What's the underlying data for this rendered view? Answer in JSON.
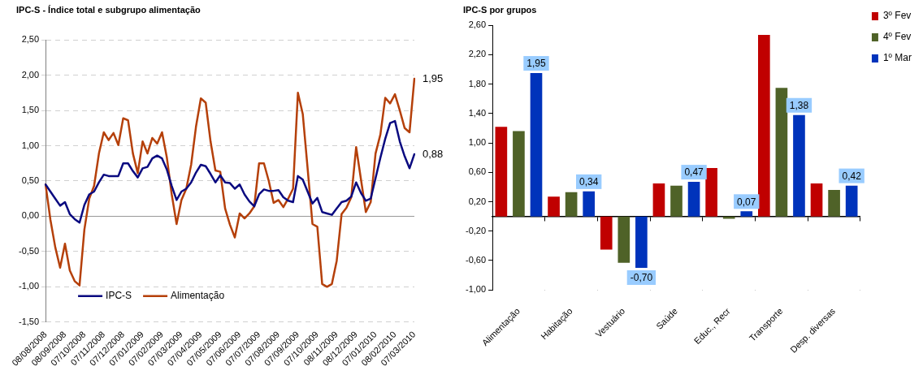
{
  "chart_data": [
    {
      "type": "line",
      "title": "IPC-S - Índice total e subgrupo alimentação",
      "categories": [
        "08/08/2008",
        null,
        null,
        null,
        "08/09/2008",
        null,
        null,
        null,
        "07/10/2008",
        null,
        null,
        null,
        "07/11/2008",
        null,
        null,
        null,
        "07/12/2008",
        null,
        null,
        null,
        "07/01/2009",
        null,
        null,
        null,
        "07/02/2009",
        null,
        null,
        null,
        "07/03/2009",
        null,
        null,
        null,
        "07/04/2009",
        null,
        null,
        null,
        "07/05/2009",
        null,
        null,
        null,
        "07/06/2009",
        null,
        null,
        null,
        "07/07/2009",
        null,
        null,
        null,
        "07/08/2009",
        null,
        null,
        null,
        "07/09/2009",
        null,
        null,
        null,
        "07/10/2009",
        null,
        null,
        null,
        "08/11/2009",
        null,
        null,
        null,
        "08/12/2009",
        null,
        null,
        null,
        "07/01/2010",
        null,
        null,
        null,
        "08/02/2010",
        null,
        null,
        null,
        "07/03/2010"
      ],
      "series": [
        {
          "name": "IPC-S",
          "color": "#0a0a80",
          "values": [
            0.45,
            0.35,
            0.25,
            0.15,
            0.2,
            0.03,
            -0.04,
            -0.09,
            0.16,
            0.31,
            0.35,
            0.48,
            0.59,
            0.57,
            0.57,
            0.57,
            0.75,
            0.75,
            0.64,
            0.55,
            0.68,
            0.7,
            0.82,
            0.86,
            0.82,
            0.66,
            0.43,
            0.23,
            0.35,
            0.39,
            0.48,
            0.62,
            0.73,
            0.71,
            0.6,
            0.48,
            0.58,
            0.48,
            0.47,
            0.39,
            0.45,
            0.31,
            0.21,
            0.14,
            0.31,
            0.38,
            0.36,
            0.36,
            0.37,
            0.27,
            0.22,
            0.2,
            0.57,
            0.52,
            0.35,
            0.18,
            0.26,
            0.06,
            0.04,
            0.02,
            0.11,
            0.2,
            0.22,
            0.28,
            0.48,
            0.33,
            0.22,
            0.25,
            0.54,
            0.83,
            1.1,
            1.32,
            1.35,
            1.06,
            0.85,
            0.68,
            0.88
          ]
        },
        {
          "name": "Alimentação",
          "color": "#b5400a",
          "values": [
            0.45,
            -0.05,
            -0.44,
            -0.73,
            -0.39,
            -0.77,
            -0.92,
            -0.98,
            -0.19,
            0.25,
            0.43,
            0.89,
            1.19,
            1.08,
            1.18,
            1.01,
            1.39,
            1.36,
            0.89,
            0.61,
            1.06,
            0.89,
            1.11,
            1.03,
            1.19,
            0.83,
            0.31,
            -0.11,
            0.23,
            0.39,
            0.73,
            1.27,
            1.67,
            1.61,
            1.06,
            0.65,
            0.63,
            0.11,
            -0.12,
            -0.3,
            0.04,
            -0.03,
            0.04,
            0.14,
            0.75,
            0.75,
            0.5,
            0.19,
            0.23,
            0.13,
            0.25,
            0.39,
            1.75,
            1.45,
            0.68,
            -0.11,
            -0.15,
            -0.96,
            -1.0,
            -0.96,
            -0.63,
            0.03,
            0.12,
            0.27,
            0.98,
            0.52,
            0.06,
            0.2,
            0.89,
            1.16,
            1.68,
            1.6,
            1.73,
            1.5,
            1.25,
            1.19,
            1.95
          ]
        }
      ],
      "ylim": [
        -1.5,
        2.5
      ],
      "yticks": [
        {
          "value": -1.5,
          "label": "-1,50"
        },
        {
          "value": -1,
          "label": "-1,00"
        },
        {
          "value": -0.5,
          "label": "-0,50"
        },
        {
          "value": 0,
          "label": "0,00"
        },
        {
          "value": 0.5,
          "label": "0,50"
        },
        {
          "value": 1,
          "label": "1,00"
        },
        {
          "value": 1.5,
          "label": "1,50"
        },
        {
          "value": 2,
          "label": "2,00"
        },
        {
          "value": 2.5,
          "label": "2,50"
        }
      ],
      "grid": "y",
      "legend": "bottom left",
      "annotations": [
        {
          "text": "1,95",
          "x": "07/03/2010",
          "y": 1.95
        },
        {
          "text": "0,88",
          "x": "07/03/2010",
          "y": 0.88
        }
      ]
    },
    {
      "type": "bar",
      "title": "IPC-S por grupos",
      "categories": [
        "Alimentação",
        "Habitação",
        "Vestuário",
        "Saúde",
        "Educ., Recr",
        "Transporte",
        "Desp. diversas"
      ],
      "series": [
        {
          "name": "3º Fev",
          "color": "#c00000",
          "values": [
            1.22,
            0.27,
            -0.45,
            0.45,
            0.66,
            2.47,
            0.45
          ]
        },
        {
          "name": "4º Fev",
          "color": "#4f6228",
          "values": [
            1.16,
            0.33,
            -0.63,
            0.42,
            -0.03,
            1.75,
            0.36
          ]
        },
        {
          "name": "1º Mar",
          "color": "#0033bb",
          "values": [
            1.95,
            0.34,
            -0.7,
            0.47,
            0.07,
            1.38,
            0.42
          ],
          "value_labels": [
            "1,95",
            "0,34",
            "-0,70",
            "0,47",
            "0,07",
            "1,38",
            "0,42"
          ]
        }
      ],
      "ylim": [
        -1,
        2.6
      ],
      "yticks": [
        {
          "value": -1,
          "label": "-1,00"
        },
        {
          "value": -0.6,
          "label": "-0,60"
        },
        {
          "value": -0.2,
          "label": "-0,20"
        },
        {
          "value": 0.2,
          "label": "0,20"
        },
        {
          "value": 0.6,
          "label": "0,60"
        },
        {
          "value": 1,
          "label": "1,00"
        },
        {
          "value": 1.4,
          "label": "1,40"
        },
        {
          "value": 1.8,
          "label": "1,80"
        },
        {
          "value": 2.2,
          "label": "2,20"
        },
        {
          "value": 2.6,
          "label": "2,60"
        }
      ],
      "grid": false,
      "legend": "right"
    }
  ]
}
